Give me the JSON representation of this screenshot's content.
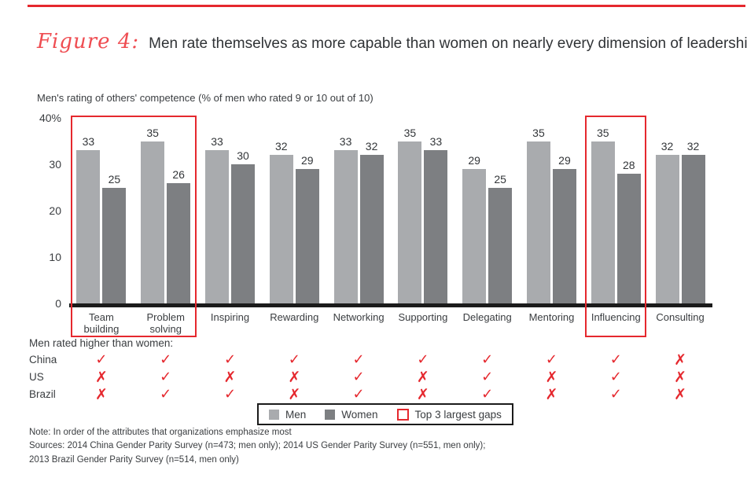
{
  "figure": {
    "label": "Figure 4:",
    "title": "Men rate themselves as more capable than women on nearly every dimension of leadership"
  },
  "chart_data": {
    "type": "bar",
    "title": "Men's rating of others' competence (% of men who rated 9 or 10 out of 10)",
    "categories": [
      "Team building",
      "Problem solving",
      "Inspiring",
      "Rewarding",
      "Networking",
      "Supporting",
      "Delegating",
      "Mentoring",
      "Influencing",
      "Consulting"
    ],
    "series": [
      {
        "name": "Men",
        "color": "#a9abae",
        "values": [
          33,
          35,
          33,
          32,
          33,
          35,
          29,
          35,
          35,
          32
        ]
      },
      {
        "name": "Women",
        "color": "#7d7f82",
        "values": [
          25,
          26,
          30,
          29,
          32,
          33,
          25,
          29,
          28,
          32
        ]
      }
    ],
    "ylim": [
      0,
      40
    ],
    "yticks": [
      {
        "value": 40,
        "label": "40%"
      },
      {
        "value": 30,
        "label": "30"
      },
      {
        "value": 20,
        "label": "20"
      },
      {
        "value": 10,
        "label": "10"
      },
      {
        "value": 0,
        "label": "0"
      }
    ],
    "grid": false,
    "legend_position": "bottom",
    "highlight": {
      "label": "Top 3 largest gaps",
      "categories": [
        "Team building",
        "Problem solving",
        "Influencing"
      ],
      "group_spans": [
        [
          0,
          1
        ],
        [
          8,
          8
        ]
      ],
      "color": "#e5282e"
    }
  },
  "ratings_table": {
    "header": "Men rated higher than women:",
    "check_glyph": "✓",
    "cross_glyph": "✗",
    "rows": [
      {
        "country": "China",
        "marks": [
          "check",
          "check",
          "check",
          "check",
          "check",
          "check",
          "check",
          "check",
          "check",
          "cross"
        ]
      },
      {
        "country": "US",
        "marks": [
          "cross",
          "check",
          "cross",
          "cross",
          "check",
          "cross",
          "check",
          "cross",
          "check",
          "cross"
        ]
      },
      {
        "country": "Brazil",
        "marks": [
          "cross",
          "check",
          "check",
          "cross",
          "check",
          "cross",
          "check",
          "cross",
          "check",
          "cross"
        ]
      }
    ]
  },
  "legend": {
    "items": [
      {
        "label": "Men",
        "swatch": "men"
      },
      {
        "label": "Women",
        "swatch": "women"
      },
      {
        "label": "Top 3 largest gaps",
        "swatch": "gap"
      }
    ]
  },
  "footer": {
    "note": "Note: In order of the attributes that organizations emphasize most",
    "sources_line1": "Sources: 2014 China Gender Parity Survey (n=473; men only); 2014 US Gender Parity Survey (n=551, men only);",
    "sources_line2": "2013 Brazil Gender Parity Survey (n=514, men only)"
  },
  "colors": {
    "accent_red": "#e5282e",
    "figure_label_red": "#ef4d52",
    "men_bar": "#a9abae",
    "women_bar": "#7d7f82",
    "axis_black": "#1b1b1b",
    "text": "#3a3d40"
  }
}
